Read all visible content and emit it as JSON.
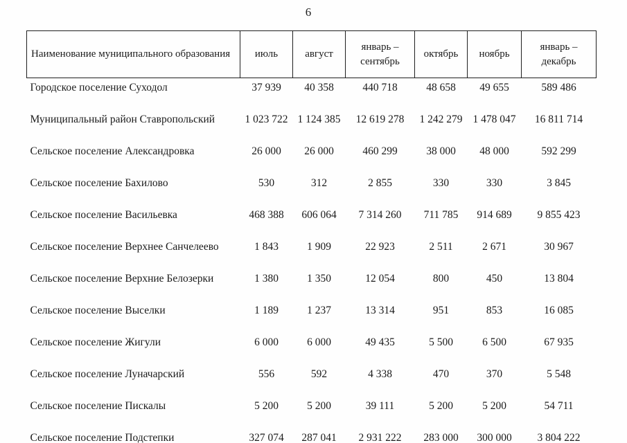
{
  "page": {
    "number": "6"
  },
  "table": {
    "columns": [
      {
        "label": "Наименование муниципального образования"
      },
      {
        "label": "июль"
      },
      {
        "label": "август"
      },
      {
        "label": "январь – сентябрь"
      },
      {
        "label": "октябрь"
      },
      {
        "label": "ноябрь"
      },
      {
        "label": "январь – декабрь"
      }
    ],
    "rows": [
      {
        "name": "Городское поселение Суходол",
        "values": [
          "37 939",
          "40 358",
          "440 718",
          "48 658",
          "49 655",
          "589 486"
        ]
      },
      {
        "name": "Муниципальный район Ставропольский",
        "values": [
          "1 023 722",
          "1 124 385",
          "12 619 278",
          "1 242 279",
          "1 478 047",
          "16 811 714"
        ]
      },
      {
        "name": "Сельское поселение Александровка",
        "values": [
          "26 000",
          "26 000",
          "460 299",
          "38 000",
          "48 000",
          "592 299"
        ]
      },
      {
        "name": "Сельское поселение Бахилово",
        "values": [
          "530",
          "312",
          "2 855",
          "330",
          "330",
          "3 845"
        ]
      },
      {
        "name": "Сельское поселение Васильевка",
        "values": [
          "468 388",
          "606 064",
          "7 314 260",
          "711 785",
          "914 689",
          "9 855 423"
        ]
      },
      {
        "name": "Сельское поселение Верхнее Санчелеево",
        "values": [
          "1 843",
          "1 909",
          "22 923",
          "2 511",
          "2 671",
          "30 967"
        ]
      },
      {
        "name": "Сельское поселение Верхние Белозерки",
        "values": [
          "1 380",
          "1 350",
          "12 054",
          "800",
          "450",
          "13 804"
        ]
      },
      {
        "name": "Сельское поселение Выселки",
        "values": [
          "1 189",
          "1 237",
          "13 314",
          "951",
          "853",
          "16 085"
        ]
      },
      {
        "name": "Сельское поселение Жигули",
        "values": [
          "6 000",
          "6 000",
          "49 435",
          "5 500",
          "6 500",
          "67 935"
        ]
      },
      {
        "name": "Сельское поселение Луначарский",
        "values": [
          "556",
          "592",
          "4 338",
          "470",
          "370",
          "5 548"
        ]
      },
      {
        "name": "Сельское поселение Пискалы",
        "values": [
          "5 200",
          "5 200",
          "39 111",
          "5 200",
          "5 200",
          "54 711"
        ]
      },
      {
        "name": "Сельское поселение Подстепки",
        "values": [
          "327 074",
          "287 041",
          "2 931 222",
          "283 000",
          "300 000",
          "3 804 222"
        ]
      }
    ]
  }
}
